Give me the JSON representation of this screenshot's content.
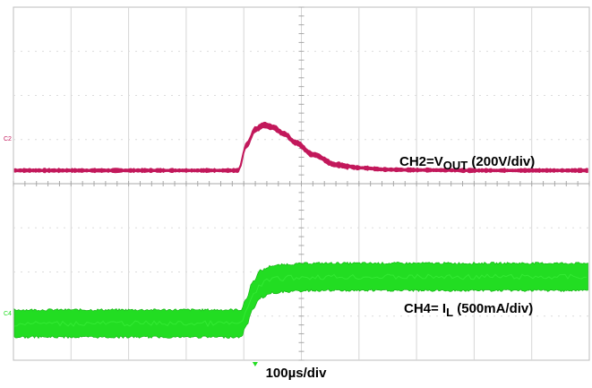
{
  "chart_data": {
    "type": "line",
    "title": "",
    "grid": true,
    "x_divisions": 10,
    "y_divisions": 8,
    "time_per_div": "100µs/div",
    "trigger_position_div": 4.0,
    "series": [
      {
        "name": "CH2",
        "label_prefix": "CH2=V",
        "label_sub": "OUT",
        "label_suffix": " (200V/div)",
        "marker": "C2",
        "color": "#c2185b",
        "scale": "200V/div",
        "x_div": [
          0,
          3.9,
          4.05,
          4.2,
          4.35,
          4.5,
          4.7,
          4.9,
          5.2,
          5.6,
          6.0,
          6.5,
          7.0,
          8.0,
          10.0
        ],
        "y_div": [
          0,
          0,
          0.6,
          0.95,
          1.05,
          1.0,
          0.85,
          0.65,
          0.38,
          0.15,
          0.06,
          0.02,
          0.01,
          0,
          0
        ]
      },
      {
        "name": "CH4",
        "label_prefix": "CH4= I",
        "label_sub": "L",
        "label_suffix": " (500mA/div)",
        "marker": "C4",
        "color": "#22dd22",
        "scale": "500mA/div",
        "band_half_width_div": 0.22,
        "x_div": [
          0,
          3.95,
          4.05,
          4.15,
          4.3,
          4.5,
          4.8,
          5.2,
          6.0,
          10.0
        ],
        "y_div": [
          0,
          0,
          0.25,
          0.6,
          0.85,
          0.95,
          0.98,
          1.0,
          1.0,
          1.0
        ]
      }
    ]
  }
}
